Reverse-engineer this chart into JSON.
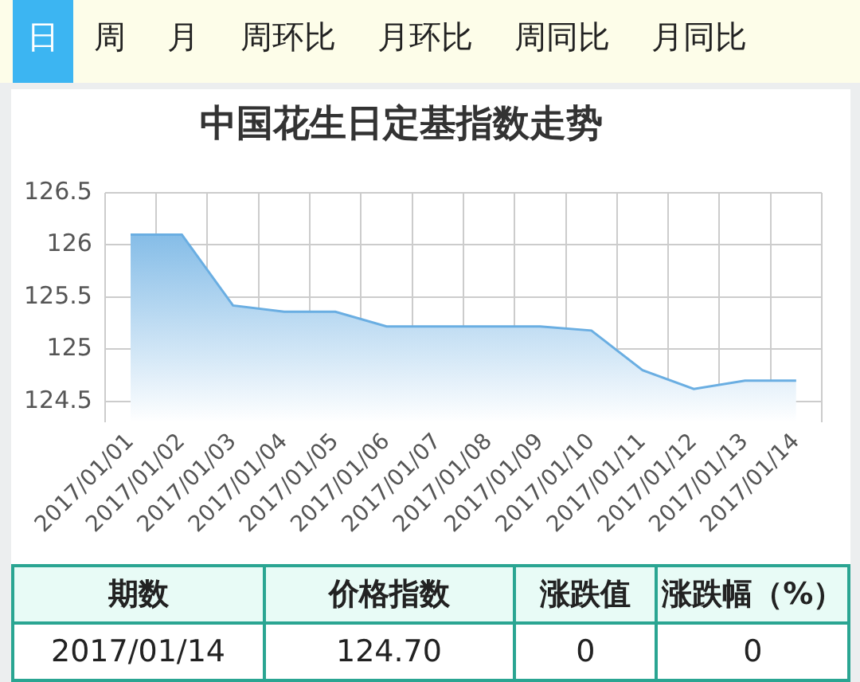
{
  "chart_data": {
    "type": "area",
    "title": "中国花生日定基指数走势",
    "categories": [
      "2017/01/01",
      "2017/01/02",
      "2017/01/03",
      "2017/01/04",
      "2017/01/05",
      "2017/01/06",
      "2017/01/07",
      "2017/01/08",
      "2017/01/09",
      "2017/01/10",
      "2017/01/11",
      "2017/01/12",
      "2017/01/13",
      "2017/01/14"
    ],
    "series": [
      {
        "color": "#6aaee2",
        "values": [
          126.1,
          126.1,
          125.42,
          125.36,
          125.36,
          125.22,
          125.22,
          125.22,
          125.22,
          125.18,
          124.8,
          124.62,
          124.7,
          124.7
        ]
      }
    ],
    "ylim": [
      124.3,
      126.5
    ],
    "yticks": [
      124.5,
      125,
      125.5,
      126,
      126.5
    ],
    "grid": true,
    "legend": false,
    "marker": "none",
    "line_style": "solid",
    "annotations": [
      "日",
      "周",
      "月",
      "周环比",
      "月环比",
      "周同比",
      "月同比",
      "期数",
      "价格指数",
      "涨跌值",
      "涨跌幅（%）",
      "2017/01/14",
      "124.70",
      "0",
      "0"
    ]
  }
}
